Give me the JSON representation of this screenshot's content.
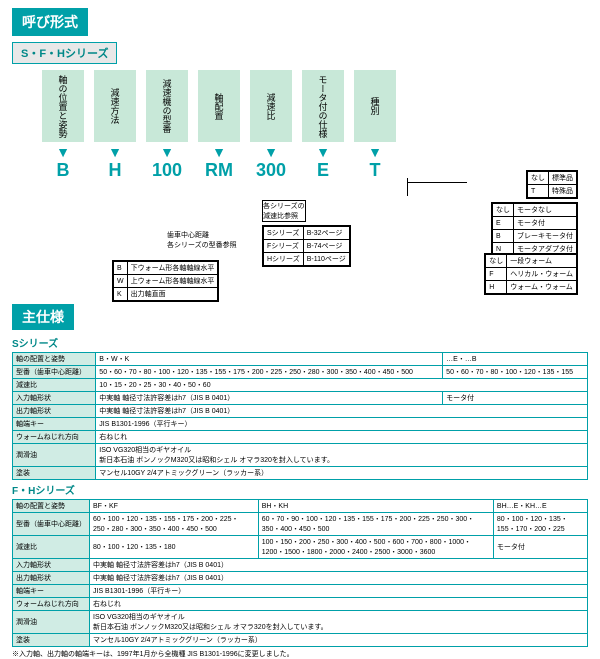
{
  "titles": {
    "main": "呼び形式",
    "series_sub": "S・F・Hシリーズ",
    "spec": "主仕様"
  },
  "columns": [
    "軸の位置と姿勢",
    "減速方法",
    "減速機の型番",
    "軸配置",
    "減速比",
    "モータ付の仕様",
    "種別"
  ],
  "codes": [
    "B",
    "H",
    "100",
    "RM",
    "300",
    "E",
    "T"
  ],
  "legend_type": [
    [
      "なし",
      "標準品"
    ],
    [
      "T",
      "特殊品"
    ]
  ],
  "legend_motor": [
    [
      "なし",
      "モータなし"
    ],
    [
      "E",
      "モータ付"
    ],
    [
      "B",
      "ブレーキモータ付"
    ],
    [
      "N",
      "モータアダプタ付"
    ]
  ],
  "legend_worm2": [
    [
      "なし",
      "一段ウォーム"
    ],
    [
      "F",
      "ヘリカル・ウォーム"
    ],
    [
      "H",
      "ウォーム・ウォーム"
    ]
  ],
  "legend_series_ref": [
    [
      "Sシリーズ",
      "B-32ページ"
    ],
    [
      "Fシリーズ",
      "B-74ページ"
    ],
    [
      "Hシリーズ",
      "B-110ページ"
    ]
  ],
  "legend_ref_top": "各シリーズの\n減速比参照",
  "legend_model_note": "歯車中心距離\n各シリーズの型番参照",
  "legend_axis": [
    [
      "B",
      "下ウォーム形各軸軸線水平"
    ],
    [
      "W",
      "上ウォーム形各軸軸線水平"
    ],
    [
      "K",
      "出力軸直面"
    ]
  ],
  "s_series": {
    "label": "Sシリーズ",
    "rows": [
      [
        "軸の配置と姿勢",
        "B・W・K",
        "",
        "…E・…B"
      ],
      [
        "型番（歯車中心距離）",
        "50・60・70・80・100・120・135・155・175・200・225・250・280・300・350・400・450・500",
        "",
        "50・60・70・80・100・120・135・155"
      ],
      [
        "減速比",
        "10・15・20・25・30・40・50・60",
        "",
        ""
      ],
      [
        "入力軸形状",
        "中実軸 軸径寸法許容差はh7（JIS B 0401）",
        "",
        "モータ付"
      ],
      [
        "出力軸形状",
        "中実軸 軸径寸法許容差はh7（JIS B 0401）",
        "",
        ""
      ],
      [
        "軸端キー",
        "JIS B1301-1996（平行キー）",
        "",
        ""
      ],
      [
        "ウォームねじれ方向",
        "右ねじれ",
        "",
        ""
      ],
      [
        "潤滑油",
        "ISO VG320相当のギヤオイル\n新日本石油 ボンノックM320又は昭和シェル オマラ320を封入しています。",
        "",
        ""
      ],
      [
        "塗装",
        "マンセル10GY 2/4アトミックグリーン（ラッカー系）",
        "",
        ""
      ]
    ]
  },
  "fh_series": {
    "label": "F・Hシリーズ",
    "rows": [
      [
        "軸の配置と姿勢",
        "BF・KF",
        "BH・KH",
        "BH…E・KH…E"
      ],
      [
        "型番（歯車中心距離）",
        "60・100・120・135・155・175・200・225・250・280・300・350・400・450・500",
        "60・70・90・100・120・135・155・175・200・225・250・300・350・400・450・500",
        "80・100・120・135・155・170・200・225"
      ],
      [
        "減速比",
        "80・100・120・135・180",
        "100・150・200・250・300・400・500・600・700・800・1000・1200・1500・1800・2000・2400・2500・3000・3600",
        "モータ付"
      ],
      [
        "入力軸形状",
        "中実軸 軸径寸法許容差はh7（JIS B 0401）",
        "",
        ""
      ],
      [
        "出力軸形状",
        "中実軸 軸径寸法許容差はh7（JIS B 0401）",
        "",
        ""
      ],
      [
        "軸端キー",
        "JIS B1301-1996（平行キー）",
        "",
        ""
      ],
      [
        "ウォームねじれ方向",
        "右ねじれ",
        "",
        ""
      ],
      [
        "潤滑油",
        "ISO VG320相当のギヤオイル\n新日本石油 ボンノックM320又は昭和シェル オマラ320を封入しています。",
        "",
        ""
      ],
      [
        "塗装",
        "マンセル10GY 2/4アトミックグリーン（ラッカー系）",
        "",
        ""
      ]
    ]
  },
  "footnote": "※入力軸、出力軸の軸端キーは、1997年1月から全機種 JIS B1301-1996に変更しました。"
}
